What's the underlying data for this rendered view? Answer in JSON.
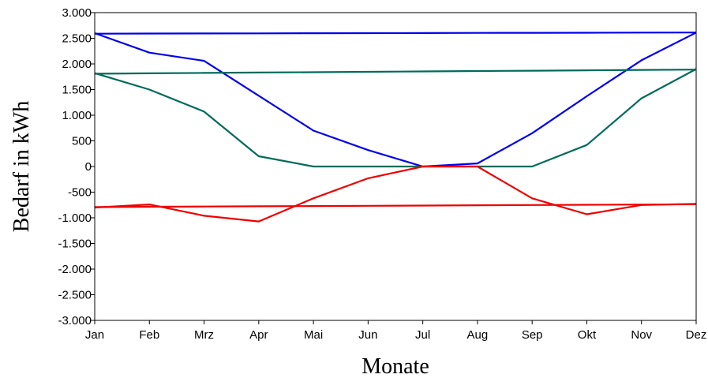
{
  "chart_data": {
    "type": "line",
    "title": "",
    "xlabel": "Monate",
    "ylabel": "Bedarf in kWh",
    "categories": [
      "Jan",
      "Feb",
      "Mrz",
      "Apr",
      "Mai",
      "Jun",
      "Jul",
      "Aug",
      "Sep",
      "Okt",
      "Nov",
      "Dez"
    ],
    "ylim": [
      -3000,
      3000
    ],
    "ytick_values": [
      3000,
      2500,
      2000,
      1500,
      1000,
      500,
      0,
      -500,
      -1000,
      -1500,
      -2000,
      -2500,
      -3000
    ],
    "ytick_labels": [
      "3.000",
      "2.500",
      "2.000",
      "1.500",
      "1.000",
      "500",
      "0",
      "-500",
      "-1.000",
      "-1.500",
      "-2.000",
      "-2.500",
      "-3.000"
    ],
    "grid": false,
    "legend": "none",
    "series": [
      {
        "color": "#0000ee",
        "values": [
          2600,
          2220,
          2060,
          1380,
          700,
          320,
          0,
          60,
          650,
          1370,
          2070,
          2610
        ]
      },
      {
        "color": "#006b5a",
        "values": [
          1820,
          1500,
          1070,
          200,
          0,
          0,
          0,
          0,
          0,
          420,
          1330,
          1900
        ]
      },
      {
        "color": "#ee0000",
        "values": [
          -800,
          -740,
          -960,
          -1070,
          -620,
          -230,
          0,
          0,
          -620,
          -930,
          -750,
          -730
        ]
      },
      {
        "color": "#0000ee",
        "values": [
          2590,
          2592,
          2594,
          2596,
          2598,
          2600,
          2602,
          2604,
          2606,
          2608,
          2610,
          2612
        ]
      },
      {
        "color": "#006b5a",
        "values": [
          1810,
          1817,
          1825,
          1832,
          1839,
          1846,
          1854,
          1861,
          1868,
          1875,
          1883,
          1890
        ]
      },
      {
        "color": "#ee0000",
        "values": [
          -790,
          -785,
          -780,
          -776,
          -771,
          -766,
          -761,
          -756,
          -751,
          -746,
          -742,
          -737
        ]
      }
    ]
  }
}
